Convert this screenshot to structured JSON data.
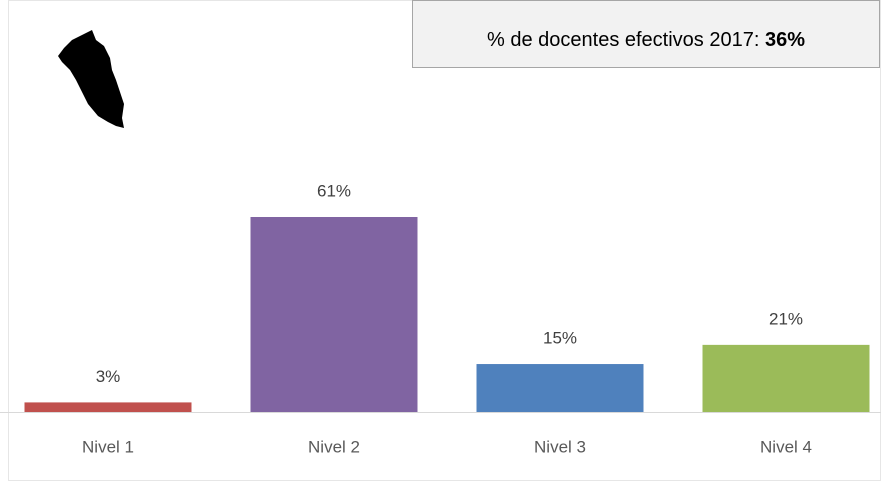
{
  "chart_data": {
    "type": "bar",
    "annotation": {
      "label": "% de docentes efectivos 2017:",
      "value": "36%"
    },
    "categories": [
      "Nivel 1",
      "Nivel 2",
      "Nivel 3",
      "Nivel 4"
    ],
    "values": [
      3,
      61,
      15,
      21
    ],
    "value_labels": [
      "3%",
      "61%",
      "15%",
      "21%"
    ],
    "colors": [
      "#c0504d",
      "#8064a2",
      "#4f81bd",
      "#9bbb59"
    ]
  }
}
